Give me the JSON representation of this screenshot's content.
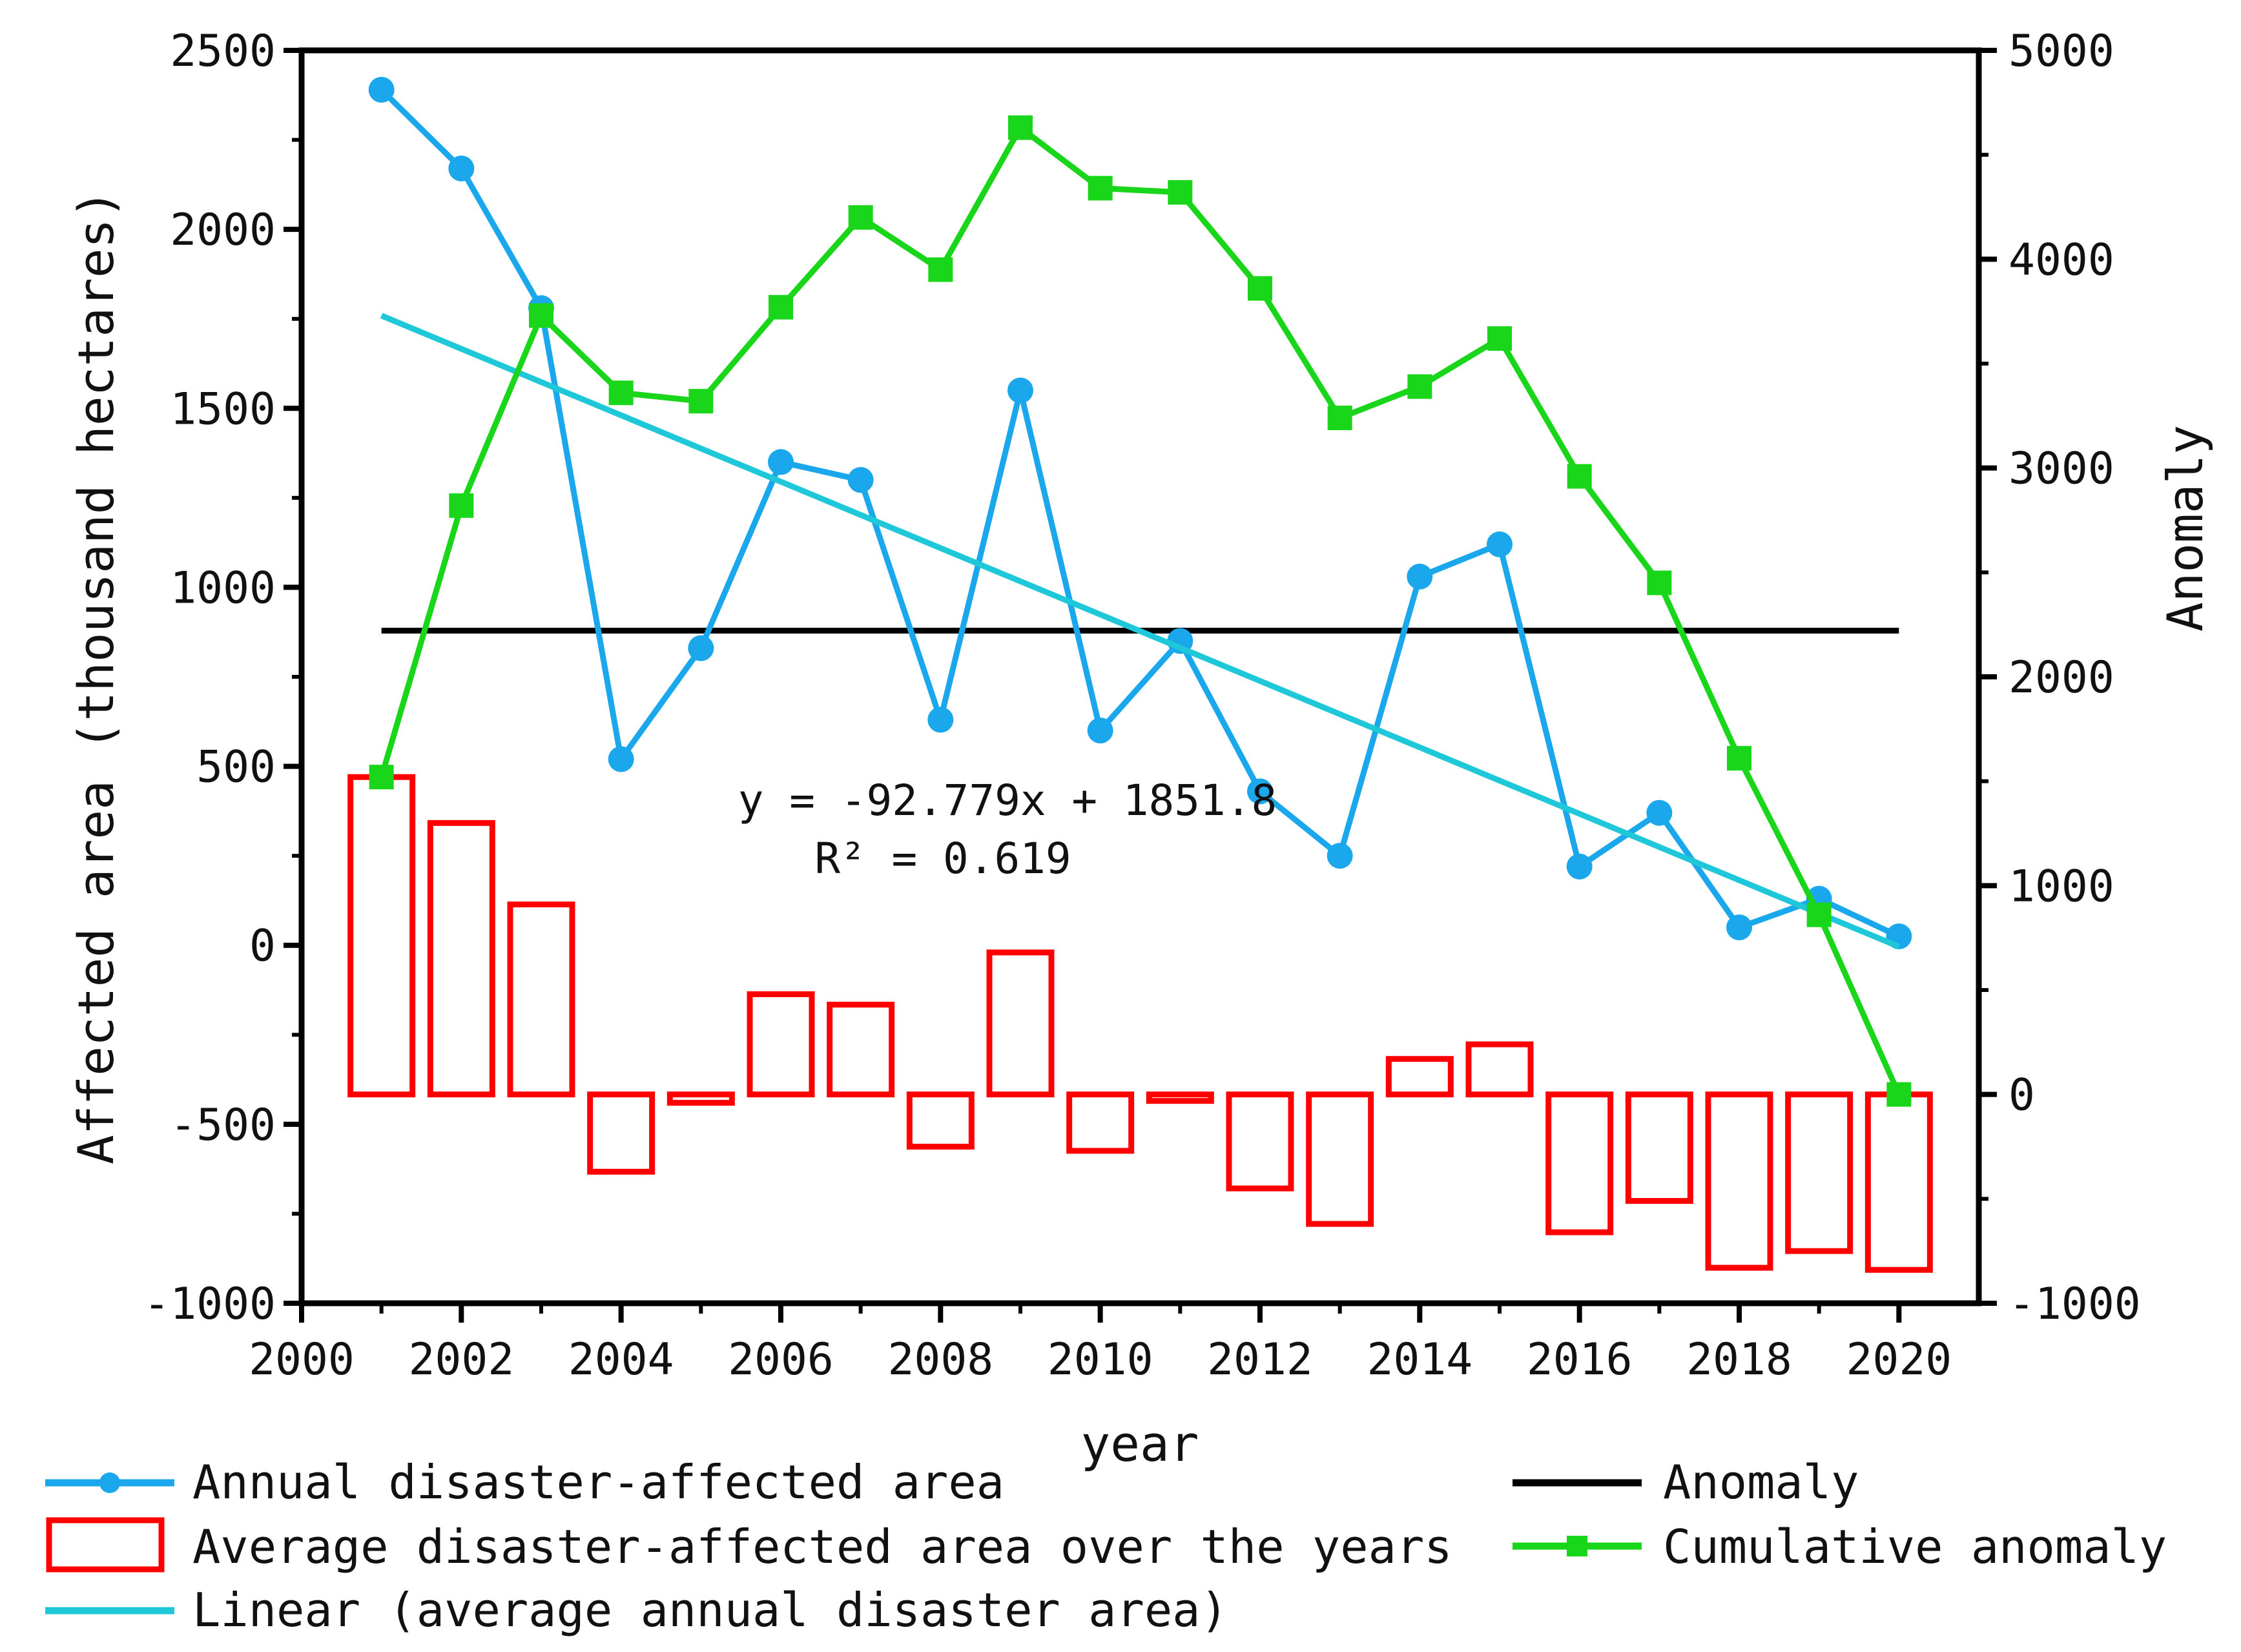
{
  "chart_data": {
    "type": "line",
    "x": [
      2001,
      2002,
      2003,
      2004,
      2005,
      2006,
      2007,
      2008,
      2009,
      2010,
      2011,
      2012,
      2013,
      2014,
      2015,
      2016,
      2017,
      2018,
      2019,
      2020
    ],
    "xlabel": "year",
    "ylabel_left": "Affected area (thousand hectares)",
    "ylabel_right": "Anomaly",
    "xlim": [
      2000,
      2021
    ],
    "ylim_left": [
      -1000,
      2500
    ],
    "ylim_right": [
      -1000,
      5000
    ],
    "xticks": [
      2000,
      2002,
      2004,
      2006,
      2008,
      2010,
      2012,
      2014,
      2016,
      2018,
      2020
    ],
    "yticks_left": [
      -1000,
      -500,
      0,
      500,
      1000,
      1500,
      2000,
      2500
    ],
    "yticks_right": [
      -1000,
      0,
      1000,
      2000,
      3000,
      4000,
      5000
    ],
    "grid": false,
    "series": [
      {
        "name": "Annual disaster-affected area",
        "kind": "line-circle",
        "axis": "left",
        "color": "#1aa7ec",
        "values": [
          2390,
          2170,
          1780,
          520,
          830,
          1350,
          1300,
          630,
          1550,
          600,
          850,
          430,
          250,
          1030,
          1120,
          220,
          370,
          50,
          130,
          25
        ]
      },
      {
        "name": "Average disaster-affected area over the years",
        "kind": "bar-outline",
        "axis": "right",
        "color": "#ff0000",
        "values": [
          1520,
          1300,
          910,
          -370,
          -40,
          480,
          430,
          -250,
          680,
          -270,
          -10,
          -450,
          -620,
          170,
          240,
          -660,
          -510,
          -830,
          -750,
          -840
        ]
      },
      {
        "name": "Linear (average annual disaster area)",
        "kind": "trendline",
        "axis": "left",
        "color": "#1fc8d8",
        "slope": -92.779,
        "intercept": 1851.8
      },
      {
        "name": "Anomaly",
        "kind": "hline",
        "axis": "left",
        "color": "#000000",
        "value": 879,
        "x_start": 2001,
        "x_end": 2020
      },
      {
        "name": "Cumulative anomaly",
        "kind": "line-square",
        "axis": "right",
        "color": "#1ad61a",
        "values": [
          1520,
          2820,
          3730,
          3360,
          3320,
          3770,
          4200,
          3950,
          4630,
          4340,
          4320,
          3860,
          3240,
          3390,
          3620,
          2960,
          2450,
          1610,
          860,
          0
        ]
      }
    ],
    "annotations": [
      "y = -92.779x + 1851.8",
      "R² = 0.619"
    ],
    "legend_position": "bottom"
  },
  "legend": {
    "items": [
      "Annual disaster-affected area",
      "Average disaster-affected area over the years",
      "Linear (average annual disaster area)",
      "Anomaly",
      "Cumulative anomaly"
    ]
  }
}
